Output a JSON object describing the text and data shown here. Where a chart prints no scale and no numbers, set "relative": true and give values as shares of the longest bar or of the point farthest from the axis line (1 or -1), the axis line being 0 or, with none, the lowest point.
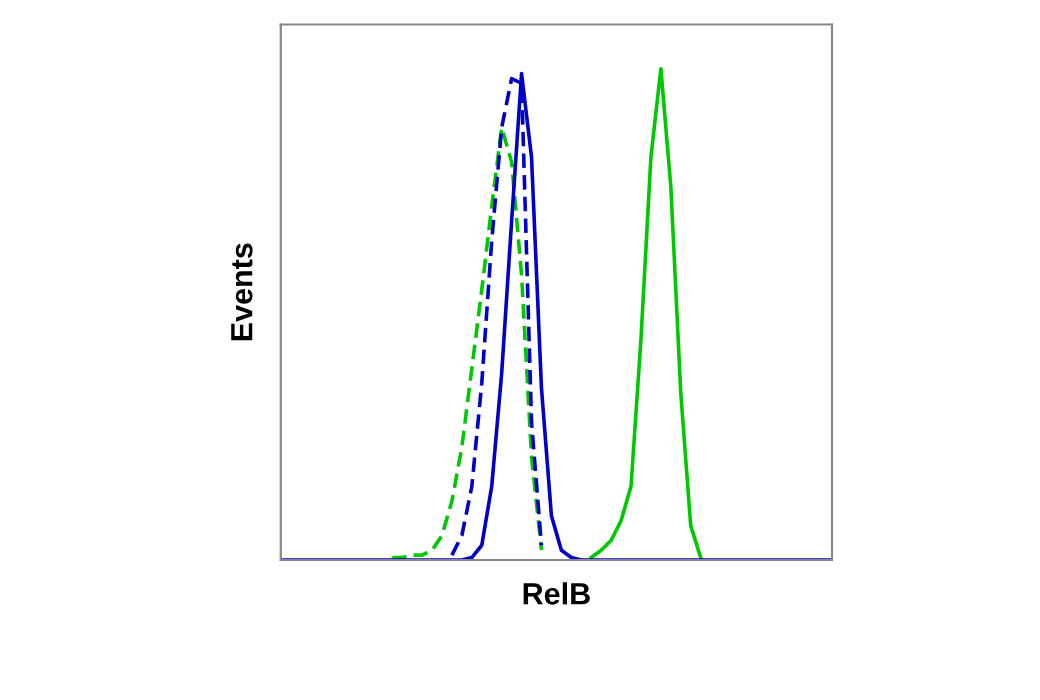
{
  "chart_data": {
    "type": "line",
    "relative": true,
    "xlabel": "RelB",
    "ylabel": "Events",
    "legend": false,
    "categories": [
      null,
      null,
      null,
      null,
      null,
      null,
      null,
      null,
      null,
      null,
      null,
      null,
      null,
      null,
      null,
      null,
      null,
      null,
      null,
      null,
      null,
      null,
      null,
      null,
      null,
      null,
      null,
      null,
      null,
      null,
      null,
      null,
      null,
      null,
      null,
      null,
      null,
      null,
      null,
      null,
      null,
      null,
      null,
      null,
      null,
      null,
      null,
      null,
      null,
      null,
      null,
      null,
      null,
      null,
      null,
      null
    ],
    "series": [
      {
        "color": "#00c800",
        "line_style": "dashed",
        "values": [
          null,
          null,
          null,
          null,
          null,
          null,
          null,
          null,
          null,
          null,
          null,
          0.005,
          0.005,
          0.01,
          0.01,
          0.02,
          0.05,
          0.12,
          0.23,
          0.39,
          0.55,
          0.72,
          0.88,
          0.81,
          0.58,
          0.21,
          0.02,
          null,
          null,
          null,
          null,
          null,
          null,
          null,
          null,
          null,
          null,
          null,
          null,
          null,
          null,
          null,
          null,
          null,
          null,
          null,
          null,
          null,
          null,
          null,
          null,
          null,
          null,
          null,
          null,
          null
        ]
      },
      {
        "color": "#0000c8",
        "line_style": "dashed",
        "values": [
          null,
          null,
          null,
          null,
          null,
          null,
          null,
          null,
          null,
          null,
          null,
          null,
          null,
          null,
          null,
          null,
          null,
          0.01,
          0.05,
          0.15,
          0.36,
          0.65,
          0.88,
          0.98,
          0.97,
          0.28,
          0.03,
          null,
          null,
          null,
          null,
          null,
          null,
          null,
          null,
          null,
          null,
          null,
          null,
          null,
          null,
          null,
          null,
          null,
          null,
          null,
          null,
          null,
          null,
          null,
          null,
          null,
          null,
          null,
          null,
          null
        ]
      },
      {
        "color": "#00c800",
        "line_style": "solid",
        "values": [
          null,
          null,
          null,
          null,
          null,
          null,
          null,
          null,
          null,
          null,
          null,
          null,
          null,
          null,
          null,
          null,
          null,
          null,
          null,
          null,
          null,
          null,
          null,
          null,
          null,
          null,
          null,
          null,
          null,
          null,
          null,
          0.005,
          0.02,
          0.04,
          0.08,
          0.15,
          0.45,
          0.82,
          1.0,
          0.76,
          0.34,
          0.07,
          0.005,
          null,
          null,
          null,
          null,
          null,
          null,
          null,
          null,
          null,
          null,
          null,
          null,
          null
        ]
      },
      {
        "color": "#0000c8",
        "line_style": "solid",
        "values": [
          0,
          0,
          0,
          0,
          0,
          0,
          0,
          0,
          0,
          0,
          0,
          0,
          0,
          0,
          0,
          0,
          0,
          0,
          0,
          0.005,
          0.03,
          0.15,
          0.38,
          0.69,
          0.99,
          0.82,
          0.35,
          0.09,
          0.02,
          0.005,
          0,
          0,
          0,
          0,
          0,
          0,
          0,
          0,
          0,
          0,
          0,
          0,
          0,
          0,
          0,
          0,
          0,
          0,
          0,
          0,
          0,
          0,
          0,
          0,
          0,
          0
        ]
      }
    ]
  }
}
